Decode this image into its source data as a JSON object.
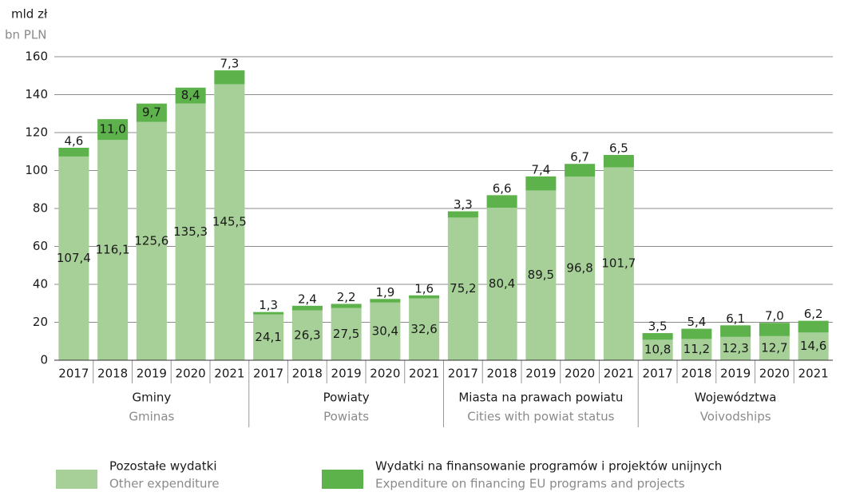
{
  "chart_data": {
    "type": "stacked_bar",
    "y_label": "mld zł",
    "y_label_en": "bn PLN",
    "ylim": [
      0,
      160
    ],
    "yticks": [
      0,
      20,
      40,
      60,
      80,
      100,
      120,
      140,
      160
    ],
    "grid": true,
    "groups": [
      {
        "label": "Gminy",
        "label_en": "Gminas",
        "categories": [
          "2017",
          "2018",
          "2019",
          "2020",
          "2021"
        ]
      },
      {
        "label": "Powiaty",
        "label_en": "Powiats",
        "categories": [
          "2017",
          "2018",
          "2019",
          "2020",
          "2021"
        ]
      },
      {
        "label": "Miasta na prawach powiatu",
        "label_en": "Cities with powiat status",
        "categories": [
          "2017",
          "2018",
          "2019",
          "2020",
          "2021"
        ]
      },
      {
        "label": "Województwa",
        "label_en": "Voivodships",
        "categories": [
          "2017",
          "2018",
          "2019",
          "2020",
          "2021"
        ]
      }
    ],
    "series": [
      {
        "name": "Pozostałe wydatki",
        "name_en": "Other expenditure",
        "color": "#a6d098",
        "values": [
          107.4,
          116.1,
          125.6,
          135.3,
          145.5,
          24.1,
          26.3,
          27.5,
          30.4,
          32.6,
          75.2,
          80.4,
          89.5,
          96.8,
          101.7,
          10.8,
          11.2,
          12.3,
          12.7,
          14.6
        ],
        "value_labels": [
          "107,4",
          "116,1",
          "125,6",
          "135,3",
          "145,5",
          "24,1",
          "26,3",
          "27,5",
          "30,4",
          "32,6",
          "75,2",
          "80,4",
          "89,5",
          "96,8",
          "101,7",
          "10,8",
          "11,2",
          "12,3",
          "12,7",
          "14,6"
        ]
      },
      {
        "name": "Wydatki na finansowanie programów i projektów unijnych",
        "name_en": "Expenditure on financing EU programs and projects",
        "color": "#5db24b",
        "values": [
          4.6,
          11.0,
          9.7,
          8.4,
          7.3,
          1.3,
          2.4,
          2.2,
          1.9,
          1.6,
          3.3,
          6.6,
          7.4,
          6.7,
          6.5,
          3.5,
          5.4,
          6.1,
          7.0,
          6.2
        ],
        "value_labels": [
          "4,6",
          "11,0",
          "9,7",
          "8,4",
          "7,3",
          "1,3",
          "2,4",
          "2,2",
          "1,9",
          "1,6",
          "3,3",
          "6,6",
          "7,4",
          "6,7",
          "6,5",
          "3,5",
          "5,4",
          "6,1",
          "7,0",
          "6,2"
        ]
      }
    ]
  }
}
